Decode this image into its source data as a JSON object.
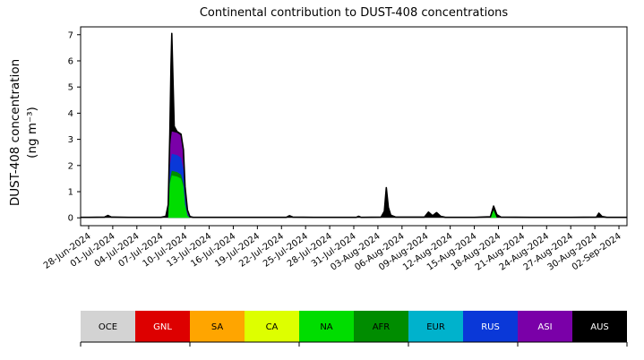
{
  "chart_data": {
    "type": "area",
    "title": "Continental contribution to DUST-408 concentrations",
    "ylabel_line1": "DUST-408 concentration",
    "ylabel_line2": "(ng m⁻³)",
    "xlabel": "",
    "ylim": [
      -0.3,
      7.3
    ],
    "yticks": [
      0,
      1,
      2,
      3,
      4,
      5,
      6,
      7
    ],
    "x_range_days": [
      -1,
      67
    ],
    "xtick_interval_days": 3,
    "xtick_labels": [
      "28-Jun-2024",
      "01-Jul-2024",
      "04-Jul-2024",
      "07-Jul-2024",
      "10-Jul-2024",
      "13-Jul-2024",
      "16-Jul-2024",
      "19-Jul-2024",
      "22-Jul-2024",
      "25-Jul-2024",
      "28-Jul-2024",
      "31-Jul-2024",
      "03-Aug-2024",
      "06-Aug-2024",
      "09-Aug-2024",
      "12-Aug-2024",
      "15-Aug-2024",
      "18-Aug-2024",
      "21-Aug-2024",
      "24-Aug-2024",
      "27-Aug-2024",
      "30-Aug-2024",
      "02-Sep-2024"
    ],
    "grid": false,
    "legend_position": "bottom-strip",
    "total_color": "#000000",
    "total_series": {
      "name": "Total",
      "points": [
        [
          -1,
          0.02
        ],
        [
          0,
          0.02
        ],
        [
          2,
          0.03
        ],
        [
          2.4,
          0.09
        ],
        [
          2.8,
          0.03
        ],
        [
          5,
          0.02
        ],
        [
          9,
          0.02
        ],
        [
          9.6,
          0.06
        ],
        [
          9.9,
          0.5
        ],
        [
          10.1,
          3.2
        ],
        [
          10.25,
          5.8
        ],
        [
          10.35,
          7.05
        ],
        [
          10.5,
          5.2
        ],
        [
          10.65,
          3.5
        ],
        [
          11,
          3.3
        ],
        [
          11.5,
          3.2
        ],
        [
          11.8,
          2.6
        ],
        [
          12,
          1.2
        ],
        [
          12.3,
          0.3
        ],
        [
          12.6,
          0.05
        ],
        [
          13,
          0.02
        ],
        [
          18,
          0.02
        ],
        [
          24.6,
          0.02
        ],
        [
          25,
          0.08
        ],
        [
          25.4,
          0.03
        ],
        [
          28,
          0.02
        ],
        [
          33.3,
          0.02
        ],
        [
          33.6,
          0.06
        ],
        [
          33.9,
          0.02
        ],
        [
          36.4,
          0.03
        ],
        [
          36.8,
          0.25
        ],
        [
          37.05,
          1.15
        ],
        [
          37.3,
          0.4
        ],
        [
          37.6,
          0.1
        ],
        [
          38.2,
          0.03
        ],
        [
          41.8,
          0.03
        ],
        [
          42.3,
          0.22
        ],
        [
          42.8,
          0.08
        ],
        [
          43.3,
          0.2
        ],
        [
          43.8,
          0.06
        ],
        [
          44.4,
          0.02
        ],
        [
          48,
          0.02
        ],
        [
          50,
          0.04
        ],
        [
          50.4,
          0.45
        ],
        [
          50.8,
          0.12
        ],
        [
          51.3,
          0.03
        ],
        [
          55,
          0.02
        ],
        [
          60,
          0.02
        ],
        [
          63.2,
          0.03
        ],
        [
          63.5,
          0.18
        ],
        [
          63.9,
          0.05
        ],
        [
          64.5,
          0.02
        ],
        [
          67,
          0.02
        ]
      ]
    },
    "stack_layers": [
      {
        "name": "ASI",
        "points": [
          [
            9.9,
            0
          ],
          [
            10.1,
            2.7
          ],
          [
            10.35,
            3.3
          ],
          [
            11,
            3.25
          ],
          [
            11.5,
            3.15
          ],
          [
            11.8,
            2.55
          ],
          [
            12,
            1.15
          ],
          [
            12.3,
            0.25
          ],
          [
            12.6,
            0
          ]
        ]
      },
      {
        "name": "RUS",
        "points": [
          [
            9.9,
            0
          ],
          [
            10.1,
            2.0
          ],
          [
            10.35,
            2.45
          ],
          [
            11,
            2.4
          ],
          [
            11.5,
            2.3
          ],
          [
            11.8,
            1.85
          ],
          [
            12,
            0.8
          ],
          [
            12.3,
            0.15
          ],
          [
            12.6,
            0
          ]
        ]
      },
      {
        "name": "AFR",
        "points": [
          [
            9.9,
            0
          ],
          [
            10.1,
            1.45
          ],
          [
            10.35,
            1.8
          ],
          [
            11,
            1.75
          ],
          [
            11.5,
            1.65
          ],
          [
            11.8,
            1.3
          ],
          [
            12,
            0.55
          ],
          [
            12.3,
            0.1
          ],
          [
            12.6,
            0
          ]
        ]
      },
      {
        "name": "NA",
        "points": [
          [
            9.9,
            0
          ],
          [
            10.1,
            1.3
          ],
          [
            10.35,
            1.62
          ],
          [
            11,
            1.58
          ],
          [
            11.5,
            1.5
          ],
          [
            11.8,
            1.18
          ],
          [
            12,
            0.5
          ],
          [
            12.3,
            0.08
          ],
          [
            12.6,
            0
          ],
          [
            50,
            0
          ],
          [
            50.4,
            0.3
          ],
          [
            50.8,
            0
          ]
        ]
      }
    ],
    "legend": [
      {
        "label": "OCE",
        "color": "#d3d3d3",
        "text_color": "#000000"
      },
      {
        "label": "GNL",
        "color": "#dd0000",
        "text_color": "#ffffff"
      },
      {
        "label": "SA",
        "color": "#ffa500",
        "text_color": "#000000"
      },
      {
        "label": "CA",
        "color": "#ddff00",
        "text_color": "#000000"
      },
      {
        "label": "NA",
        "color": "#00dd00",
        "text_color": "#000000"
      },
      {
        "label": "AFR",
        "color": "#008c00",
        "text_color": "#000000"
      },
      {
        "label": "EUR",
        "color": "#00b2cc",
        "text_color": "#000000"
      },
      {
        "label": "RUS",
        "color": "#0a38d8",
        "text_color": "#ffffff"
      },
      {
        "label": "ASI",
        "color": "#7a00a8",
        "text_color": "#ffffff"
      },
      {
        "label": "AUS",
        "color": "#000000",
        "text_color": "#ffffff"
      }
    ]
  }
}
